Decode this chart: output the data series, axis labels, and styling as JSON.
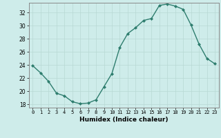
{
  "x": [
    0,
    1,
    2,
    3,
    4,
    5,
    6,
    7,
    8,
    9,
    10,
    11,
    12,
    13,
    14,
    15,
    16,
    17,
    18,
    19,
    20,
    21,
    22,
    23
  ],
  "y": [
    23.9,
    22.8,
    21.5,
    19.7,
    19.3,
    18.4,
    18.1,
    18.2,
    18.7,
    20.7,
    22.7,
    26.7,
    28.8,
    29.7,
    30.8,
    31.1,
    33.1,
    33.3,
    33.0,
    32.5,
    30.1,
    27.2,
    25.0,
    24.2
  ],
  "xlim": [
    -0.5,
    23.5
  ],
  "ylim": [
    17.5,
    33.5
  ],
  "yticks": [
    18,
    20,
    22,
    24,
    26,
    28,
    30,
    32
  ],
  "xticks": [
    0,
    1,
    2,
    3,
    4,
    5,
    6,
    7,
    8,
    9,
    10,
    11,
    12,
    13,
    14,
    15,
    16,
    17,
    18,
    19,
    20,
    21,
    22,
    23
  ],
  "xlabel": "Humidex (Indice chaleur)",
  "line_color": "#2e7d6e",
  "marker_color": "#2e7d6e",
  "bg_color": "#ceecea",
  "grid_color": "#b8d8d4",
  "spine_color": "#888888"
}
